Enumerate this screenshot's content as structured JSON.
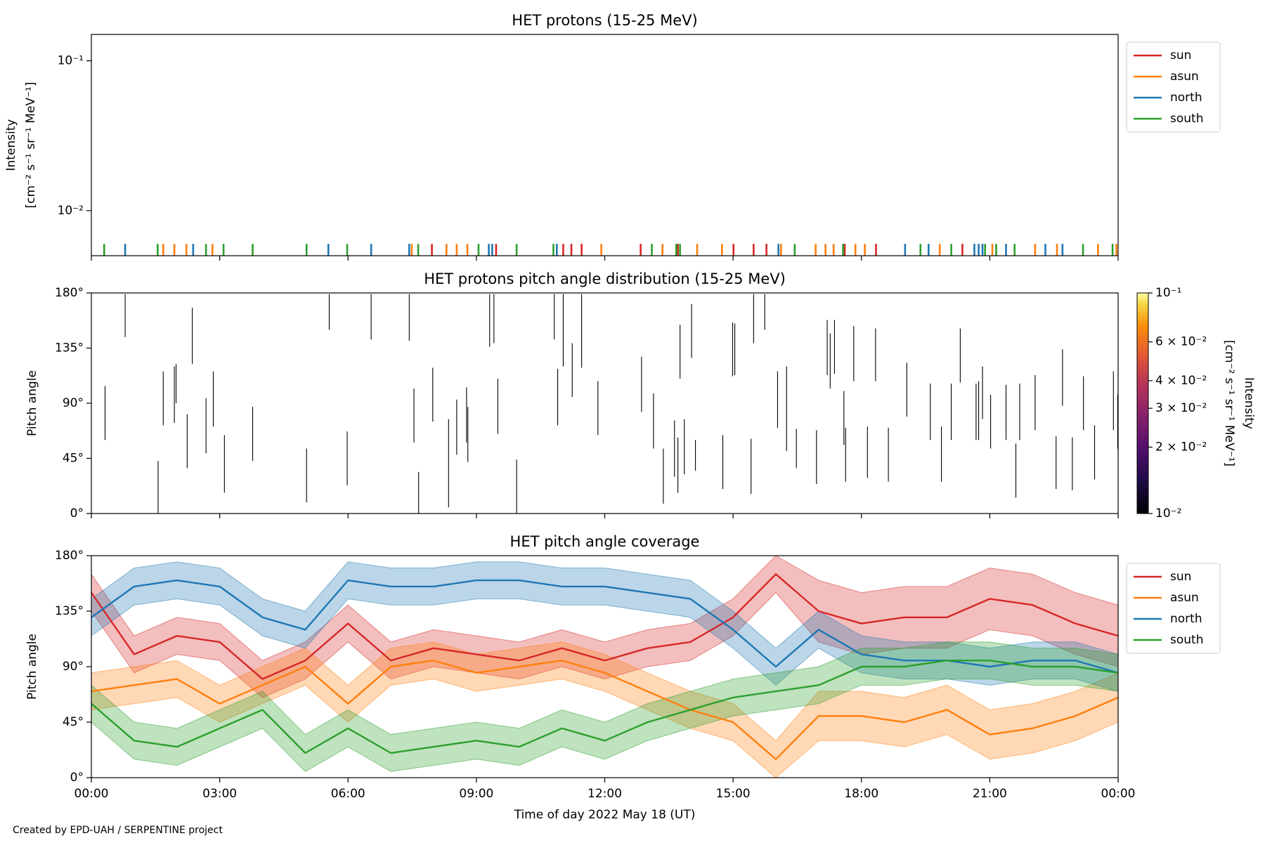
{
  "chart_data": [
    {
      "type": "stem",
      "title": "HET protons (15-25 MeV)",
      "ylabel": [
        "Intensity",
        "[cm⁻² s⁻¹ sr⁻¹ MeV⁻¹]"
      ],
      "log": true,
      "ylim": [
        0.005,
        0.15
      ],
      "yticks": [
        {
          "value": 0.01,
          "label": "10⁻²"
        },
        {
          "value": 0.1,
          "label": "10⁻¹"
        }
      ],
      "xlim": [
        0,
        24
      ],
      "xticks": [
        0,
        3,
        6,
        9,
        12,
        15,
        18,
        21,
        24
      ],
      "legend": "upper right",
      "series": [
        {
          "name": "sun",
          "color": "#d62728",
          "x": [
            7.96,
            9.46,
            11.03,
            11.22,
            11.46,
            12.84,
            13.71,
            15.01,
            15.48,
            15.78,
            17.61,
            18.34,
            20.36
          ],
          "values": [
            0.006,
            0.006,
            0.006,
            0.006,
            0.006,
            0.006,
            0.006,
            0.006,
            0.006,
            0.006,
            0.006,
            0.006,
            0.006
          ]
        },
        {
          "name": "asun",
          "color": "#ff7f0e",
          "x": [
            1.68,
            1.94,
            2.22,
            2.83,
            7.49,
            8.3,
            8.54,
            8.79,
            11.92,
            13.35,
            14.16,
            14.74,
            16.12,
            16.93,
            17.16,
            17.35,
            17.86,
            18.08,
            19.83,
            21.06,
            22.06,
            22.57,
            23.53,
            23.96
          ],
          "values": [
            0.006,
            0.006,
            0.006,
            0.006,
            0.006,
            0.006,
            0.006,
            0.006,
            0.006,
            0.006,
            0.006,
            0.006,
            0.006,
            0.006,
            0.006,
            0.006,
            0.006,
            0.006,
            0.006,
            0.006,
            0.006,
            0.006,
            0.006,
            0.006
          ]
        },
        {
          "name": "north",
          "color": "#1f77b4",
          "x": [
            0.79,
            2.38,
            5.54,
            6.54,
            7.43,
            9.29,
            9.37,
            10.88,
            16.06,
            19.02,
            19.57,
            20.64,
            20.74,
            20.83,
            21.38,
            22.3,
            22.7
          ],
          "values": [
            0.006,
            0.006,
            0.006,
            0.006,
            0.006,
            0.006,
            0.006,
            0.006,
            0.006,
            0.006,
            0.006,
            0.006,
            0.006,
            0.006,
            0.006,
            0.006,
            0.006
          ]
        },
        {
          "name": "south",
          "color": "#2ca02c",
          "x": [
            0.3,
            1.55,
            2.68,
            3.09,
            3.77,
            5.03,
            5.98,
            7.64,
            9.05,
            9.94,
            10.8,
            13.1,
            13.67,
            13.76,
            16.44,
            17.57,
            19.38,
            20.1,
            20.89,
            21.15,
            21.58,
            23.18,
            23.87
          ],
          "values": [
            0.006,
            0.006,
            0.006,
            0.006,
            0.006,
            0.006,
            0.006,
            0.006,
            0.006,
            0.006,
            0.006,
            0.006,
            0.006,
            0.006,
            0.006,
            0.006,
            0.006,
            0.006,
            0.006,
            0.006,
            0.006,
            0.006,
            0.006
          ]
        }
      ]
    },
    {
      "type": "segment",
      "title": "HET protons pitch angle distribution (15-25 MeV)",
      "ylabel": [
        "Pitch angle"
      ],
      "ylim": [
        0,
        180
      ],
      "yticks": [
        {
          "value": 0,
          "label": "0°"
        },
        {
          "value": 45,
          "label": "45°"
        },
        {
          "value": 90,
          "label": "90°"
        },
        {
          "value": 135,
          "label": "135°"
        },
        {
          "value": 180,
          "label": "180°"
        }
      ],
      "xlim": [
        0,
        24
      ],
      "xticks": [
        0,
        3,
        6,
        9,
        12,
        15,
        18,
        21,
        24
      ],
      "color": "#000000",
      "x": [
        0.32,
        0.79,
        1.56,
        1.68,
        1.94,
        1.98,
        2.24,
        2.36,
        2.68,
        2.85,
        3.11,
        3.77,
        5.03,
        5.56,
        5.98,
        6.54,
        7.43,
        7.54,
        7.65,
        7.98,
        8.35,
        8.54,
        8.77,
        8.8,
        9.31,
        9.41,
        9.5,
        9.94,
        10.82,
        10.9,
        11.03,
        11.24,
        11.46,
        11.84,
        12.86,
        13.14,
        13.37,
        13.63,
        13.71,
        13.76,
        13.86,
        14.03,
        14.12,
        14.76,
        14.99,
        15.04,
        15.42,
        15.48,
        15.74,
        16.04,
        16.25,
        16.48,
        16.95,
        17.2,
        17.27,
        17.37,
        17.59,
        17.63,
        17.82,
        18.14,
        18.33,
        18.63,
        19.06,
        19.61,
        19.87,
        20.1,
        20.31,
        20.68,
        20.74,
        20.83,
        21.02,
        21.38,
        21.61,
        21.7,
        22.06,
        22.55,
        22.7,
        22.93,
        23.19,
        23.45,
        23.89,
        23.99
      ],
      "low": [
        60,
        144,
        0,
        72,
        74,
        90,
        37,
        122,
        49,
        71,
        17,
        43,
        9,
        150,
        23,
        142,
        141,
        58,
        0,
        75,
        5,
        48,
        58,
        42,
        136,
        139,
        65,
        0,
        142,
        72,
        120,
        95,
        119,
        64,
        83,
        53,
        8,
        30,
        17,
        110,
        32,
        127,
        35,
        20,
        112,
        113,
        16,
        139,
        150,
        70,
        51,
        37,
        24,
        113,
        102,
        114,
        56,
        26,
        108,
        29,
        108,
        26,
        79,
        60,
        26,
        60,
        107,
        60,
        60,
        77,
        53,
        60,
        13,
        60,
        68,
        20,
        88,
        19,
        68,
        28,
        68,
        53
      ],
      "high": [
        104,
        179,
        43,
        116,
        120,
        122,
        81,
        168,
        94,
        116,
        64,
        87,
        53,
        179,
        67,
        179,
        179,
        102,
        34,
        119,
        77,
        93,
        103,
        87,
        179,
        179,
        110,
        44,
        179,
        118,
        179,
        139,
        179,
        108,
        128,
        98,
        53,
        76,
        62,
        154,
        77,
        171,
        60,
        64,
        156,
        155,
        61,
        179,
        179,
        116,
        120,
        69,
        68,
        158,
        147,
        158,
        100,
        70,
        153,
        71,
        151,
        70,
        123,
        106,
        71,
        106,
        151,
        106,
        108,
        120,
        97,
        105,
        57,
        106,
        113,
        63,
        134,
        62,
        112,
        72,
        116,
        97
      ],
      "colorbar": {
        "label": [
          "Intensity",
          "[cm⁻² s⁻¹ sr⁻¹ MeV⁻¹]"
        ],
        "log": true,
        "lim": [
          0.01,
          0.1
        ],
        "ticks": [
          {
            "value": 0.01,
            "label": "10⁻²"
          },
          {
            "value": 0.02,
            "label": "2 × 10⁻²"
          },
          {
            "value": 0.03,
            "label": "3 × 10⁻²"
          },
          {
            "value": 0.04,
            "label": "4 × 10⁻²"
          },
          {
            "value": 0.06,
            "label": "6 × 10⁻²"
          },
          {
            "value": 0.1,
            "label": "10⁻¹"
          }
        ]
      }
    },
    {
      "type": "line",
      "title": "HET pitch angle coverage",
      "ylabel": [
        "Pitch angle"
      ],
      "xlabel": "Time of day 2022 May 18 (UT)",
      "ylim": [
        0,
        180
      ],
      "yticks": [
        {
          "value": 0,
          "label": "0°"
        },
        {
          "value": 45,
          "label": "45°"
        },
        {
          "value": 90,
          "label": "90°"
        },
        {
          "value": 135,
          "label": "135°"
        },
        {
          "value": 180,
          "label": "180°"
        }
      ],
      "xlim": [
        0,
        24
      ],
      "xticks": [
        {
          "value": 0,
          "label": "00:00"
        },
        {
          "value": 3,
          "label": "03:00"
        },
        {
          "value": 6,
          "label": "06:00"
        },
        {
          "value": 9,
          "label": "09:00"
        },
        {
          "value": 12,
          "label": "12:00"
        },
        {
          "value": 15,
          "label": "15:00"
        },
        {
          "value": 18,
          "label": "18:00"
        },
        {
          "value": 21,
          "label": "21:00"
        },
        {
          "value": 24,
          "label": "00:00"
        }
      ],
      "legend": "upper right",
      "band_opacity": 0.3,
      "x": [
        0,
        1,
        2,
        3,
        4,
        5,
        6,
        7,
        8,
        9,
        10,
        11,
        12,
        13,
        14,
        15,
        16,
        17,
        18,
        19,
        20,
        21,
        22,
        23,
        24
      ],
      "series": [
        {
          "name": "sun",
          "color": "#d62728",
          "values": [
            150,
            100,
            115,
            110,
            80,
            95,
            125,
            95,
            105,
            100,
            95,
            105,
            95,
            105,
            110,
            130,
            165,
            135,
            125,
            130,
            130,
            145,
            140,
            125,
            115
          ],
          "low": [
            135,
            85,
            100,
            95,
            65,
            80,
            110,
            80,
            90,
            85,
            80,
            90,
            80,
            90,
            95,
            115,
            150,
            110,
            100,
            105,
            105,
            120,
            115,
            100,
            90
          ],
          "high": [
            165,
            115,
            130,
            125,
            95,
            110,
            140,
            110,
            120,
            115,
            110,
            120,
            110,
            120,
            125,
            145,
            180,
            160,
            150,
            155,
            155,
            170,
            165,
            150,
            140
          ]
        },
        {
          "name": "asun",
          "color": "#ff7f0e",
          "values": [
            70,
            75,
            80,
            60,
            75,
            90,
            60,
            90,
            95,
            85,
            90,
            95,
            85,
            70,
            55,
            45,
            15,
            50,
            50,
            45,
            55,
            35,
            40,
            50,
            65
          ],
          "low": [
            55,
            60,
            65,
            45,
            60,
            75,
            45,
            75,
            80,
            70,
            75,
            80,
            70,
            55,
            40,
            30,
            0,
            30,
            30,
            25,
            35,
            15,
            20,
            30,
            45
          ],
          "high": [
            85,
            90,
            95,
            75,
            90,
            105,
            75,
            105,
            110,
            100,
            105,
            110,
            100,
            85,
            70,
            60,
            30,
            70,
            70,
            65,
            75,
            55,
            60,
            70,
            85
          ]
        },
        {
          "name": "north",
          "color": "#1f77b4",
          "values": [
            130,
            155,
            160,
            155,
            130,
            120,
            160,
            155,
            155,
            160,
            160,
            155,
            155,
            150,
            145,
            120,
            90,
            120,
            100,
            95,
            95,
            90,
            95,
            95,
            85
          ],
          "low": [
            115,
            140,
            145,
            140,
            115,
            105,
            145,
            140,
            140,
            145,
            145,
            140,
            140,
            135,
            130,
            105,
            75,
            105,
            85,
            80,
            80,
            75,
            80,
            80,
            70
          ],
          "high": [
            145,
            170,
            175,
            170,
            145,
            135,
            175,
            170,
            170,
            175,
            175,
            170,
            170,
            165,
            160,
            135,
            105,
            135,
            115,
            110,
            110,
            105,
            110,
            110,
            100
          ]
        },
        {
          "name": "south",
          "color": "#2ca02c",
          "values": [
            60,
            30,
            25,
            40,
            55,
            20,
            40,
            20,
            25,
            30,
            25,
            40,
            30,
            45,
            55,
            65,
            70,
            75,
            90,
            90,
            95,
            95,
            90,
            90,
            85
          ],
          "low": [
            45,
            15,
            10,
            25,
            40,
            5,
            25,
            5,
            10,
            15,
            10,
            25,
            15,
            30,
            40,
            50,
            55,
            60,
            75,
            75,
            80,
            80,
            75,
            75,
            70
          ],
          "high": [
            75,
            45,
            40,
            55,
            70,
            35,
            55,
            35,
            40,
            45,
            40,
            55,
            45,
            60,
            70,
            80,
            85,
            90,
            105,
            105,
            110,
            110,
            105,
            105,
            100
          ]
        }
      ]
    }
  ],
  "footer": "Created by EPD-UAH / SERPENTINE project"
}
